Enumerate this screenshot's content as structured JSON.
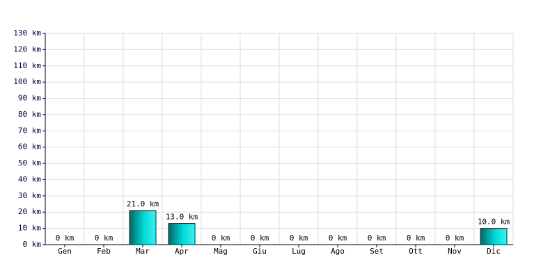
{
  "chart_data": {
    "type": "bar",
    "categories": [
      "Gen",
      "Feb",
      "Mar",
      "Apr",
      "Mag",
      "Giu",
      "Lug",
      "Ago",
      "Set",
      "Ott",
      "Nov",
      "Dic"
    ],
    "values": [
      0,
      0,
      21,
      13,
      0,
      0,
      0,
      0,
      0,
      0,
      0,
      10
    ],
    "value_labels": [
      "0 km",
      "0 km",
      "21.0 km",
      "13.0 km",
      "0 km",
      "0 km",
      "0 km",
      "0 km",
      "0 km",
      "0 km",
      "0 km",
      "10.0 km"
    ],
    "color": "#00d8d8",
    "ylim": [
      0,
      130
    ],
    "yticks": [
      {
        "value": 0,
        "label": "0 km"
      },
      {
        "value": 10,
        "label": "10 km"
      },
      {
        "value": 20,
        "label": "20 km"
      },
      {
        "value": 30,
        "label": "30 km"
      },
      {
        "value": 40,
        "label": "40 km"
      },
      {
        "value": 50,
        "label": "50 km"
      },
      {
        "value": 60,
        "label": "60 km"
      },
      {
        "value": 70,
        "label": "70 km"
      },
      {
        "value": 80,
        "label": "80 km"
      },
      {
        "value": 90,
        "label": "90 km"
      },
      {
        "value": 100,
        "label": "100 km"
      },
      {
        "value": 110,
        "label": "110 km"
      },
      {
        "value": 120,
        "label": "120 km"
      },
      {
        "value": 130,
        "label": "130 km"
      }
    ],
    "grid": true
  }
}
